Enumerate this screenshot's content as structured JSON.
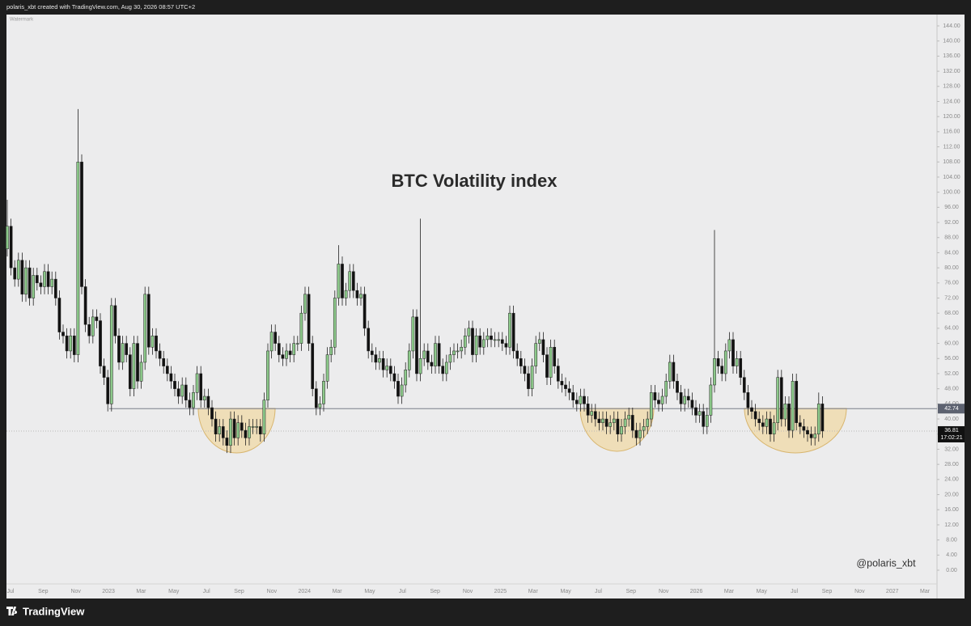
{
  "header": {
    "text": "polaris_xbt created with TradingView.com, Aug 30, 2026 08:57 UTC+2"
  },
  "footer": {
    "brand": "TradingView"
  },
  "chart_data": {
    "type": "candlestick",
    "title": "BTC Volatility index",
    "watermark": "@polaris_xbt",
    "corner_note": "Watermark",
    "up_color": "#8cc98a",
    "down_color": "#111111",
    "open": [
      85,
      91,
      80,
      77,
      82,
      73,
      80,
      72,
      78,
      76,
      75,
      79,
      75,
      77,
      72,
      63,
      62,
      58,
      62,
      57,
      108,
      75,
      65,
      62,
      67,
      66,
      54,
      51,
      44,
      70,
      62,
      55,
      60,
      57,
      48,
      60,
      50,
      55,
      73,
      59,
      62,
      58,
      56,
      54,
      52,
      50,
      48,
      46,
      49,
      45,
      43,
      47,
      52,
      45,
      46,
      43,
      40,
      36,
      38,
      35,
      33,
      40,
      35,
      39,
      37,
      35,
      38,
      38,
      38,
      36,
      45,
      58,
      63,
      60,
      57,
      56,
      58,
      57,
      60,
      60,
      68,
      73,
      60,
      48,
      43,
      44,
      50,
      57,
      59,
      72,
      81,
      72,
      74,
      79,
      74,
      72,
      73,
      64,
      58,
      57,
      55,
      56,
      53,
      54,
      52,
      50,
      46,
      49,
      53,
      58,
      67,
      52,
      56,
      58,
      55,
      54,
      60,
      54,
      52,
      55,
      57,
      58,
      58,
      59,
      62,
      64,
      57,
      62,
      59,
      61,
      62,
      61,
      61,
      61,
      60,
      59,
      68,
      58,
      56,
      54,
      52,
      48,
      54,
      60,
      61,
      57,
      51,
      59,
      54,
      50,
      49,
      48,
      47,
      45,
      44,
      46,
      44,
      41,
      42,
      40,
      39,
      40,
      38,
      39,
      40,
      36,
      38,
      40,
      41,
      37,
      35,
      37,
      38,
      40,
      47,
      45,
      44,
      46,
      50,
      55,
      50,
      47,
      44,
      46,
      45,
      43,
      41,
      42,
      38,
      41,
      49,
      56,
      54,
      52,
      58,
      61,
      54,
      56,
      51,
      47,
      43,
      42,
      40,
      39,
      38,
      40,
      36,
      39,
      51,
      40,
      44,
      37,
      50,
      39,
      38,
      37,
      36,
      35,
      36,
      44
    ],
    "high": [
      98,
      93,
      82,
      84,
      84,
      82,
      82,
      80,
      80,
      78,
      81,
      81,
      79,
      79,
      74,
      65,
      64,
      64,
      64,
      122,
      110,
      77,
      67,
      69,
      69,
      68,
      56,
      53,
      72,
      72,
      64,
      62,
      62,
      59,
      62,
      62,
      57,
      75,
      75,
      64,
      64,
      60,
      58,
      56,
      54,
      52,
      50,
      51,
      51,
      47,
      49,
      54,
      54,
      48,
      48,
      45,
      42,
      40,
      40,
      37,
      42,
      42,
      41,
      41,
      39,
      40,
      40,
      40,
      40,
      47,
      60,
      65,
      65,
      62,
      59,
      60,
      60,
      62,
      62,
      70,
      75,
      75,
      62,
      50,
      46,
      52,
      59,
      61,
      74,
      86,
      83,
      76,
      81,
      81,
      76,
      75,
      75,
      66,
      60,
      59,
      58,
      58,
      56,
      56,
      54,
      52,
      51,
      55,
      60,
      69,
      69,
      93,
      60,
      60,
      57,
      62,
      62,
      56,
      57,
      59,
      60,
      60,
      61,
      64,
      66,
      66,
      64,
      64,
      63,
      64,
      64,
      63,
      63,
      63,
      62,
      70,
      70,
      60,
      58,
      56,
      54,
      56,
      62,
      63,
      63,
      59,
      61,
      61,
      56,
      52,
      51,
      50,
      49,
      47,
      48,
      48,
      46,
      44,
      44,
      42,
      42,
      42,
      41,
      42,
      42,
      40,
      42,
      43,
      43,
      39,
      39,
      40,
      42,
      49,
      49,
      47,
      48,
      52,
      57,
      57,
      52,
      49,
      48,
      48,
      47,
      45,
      44,
      44,
      43,
      51,
      90,
      58,
      56,
      60,
      63,
      63,
      58,
      58,
      53,
      49,
      45,
      44,
      42,
      41,
      42,
      42,
      41,
      53,
      53,
      46,
      46,
      52,
      52,
      41,
      40,
      38,
      38,
      38,
      47,
      46
    ],
    "low": [
      83,
      78,
      75,
      75,
      71,
      71,
      70,
      70,
      74,
      73,
      73,
      73,
      73,
      70,
      61,
      60,
      56,
      56,
      55,
      55,
      73,
      63,
      60,
      60,
      64,
      52,
      49,
      42,
      42,
      60,
      53,
      53,
      55,
      46,
      46,
      48,
      48,
      53,
      57,
      57,
      56,
      54,
      52,
      50,
      48,
      46,
      44,
      44,
      43,
      41,
      41,
      45,
      43,
      43,
      41,
      38,
      34,
      34,
      33,
      31,
      31,
      33,
      33,
      35,
      33,
      33,
      36,
      36,
      34,
      34,
      43,
      56,
      58,
      55,
      54,
      54,
      55,
      55,
      58,
      58,
      66,
      58,
      46,
      41,
      41,
      42,
      48,
      55,
      57,
      70,
      70,
      70,
      72,
      72,
      70,
      70,
      62,
      56,
      55,
      53,
      53,
      51,
      51,
      50,
      48,
      44,
      44,
      47,
      51,
      56,
      50,
      50,
      54,
      53,
      52,
      52,
      52,
      50,
      50,
      53,
      55,
      56,
      56,
      57,
      60,
      55,
      55,
      57,
      57,
      59,
      59,
      59,
      59,
      58,
      57,
      57,
      56,
      54,
      52,
      50,
      46,
      46,
      52,
      58,
      55,
      49,
      49,
      52,
      48,
      47,
      46,
      45,
      43,
      42,
      42,
      42,
      39,
      39,
      38,
      37,
      37,
      36,
      36,
      37,
      34,
      34,
      36,
      38,
      35,
      33,
      33,
      35,
      36,
      38,
      43,
      42,
      42,
      44,
      48,
      48,
      45,
      42,
      42,
      43,
      41,
      39,
      39,
      36,
      36,
      39,
      47,
      52,
      50,
      50,
      56,
      52,
      52,
      49,
      45,
      41,
      40,
      38,
      37,
      36,
      36,
      34,
      34,
      37,
      38,
      38,
      35,
      35,
      37,
      36,
      35,
      34,
      33,
      33,
      34,
      35
    ],
    "close": [
      91,
      80,
      77,
      82,
      73,
      80,
      72,
      78,
      76,
      75,
      79,
      75,
      77,
      72,
      63,
      62,
      58,
      62,
      57,
      108,
      75,
      65,
      62,
      67,
      66,
      54,
      51,
      44,
      70,
      62,
      55,
      60,
      57,
      48,
      60,
      50,
      55,
      73,
      59,
      62,
      58,
      56,
      54,
      52,
      50,
      48,
      46,
      49,
      45,
      43,
      47,
      52,
      45,
      46,
      43,
      40,
      36,
      38,
      35,
      33,
      40,
      35,
      39,
      37,
      35,
      38,
      38,
      38,
      36,
      45,
      58,
      63,
      60,
      57,
      56,
      58,
      57,
      60,
      60,
      68,
      73,
      60,
      48,
      43,
      44,
      50,
      57,
      59,
      72,
      81,
      72,
      74,
      79,
      74,
      72,
      73,
      64,
      58,
      57,
      55,
      56,
      53,
      54,
      52,
      50,
      46,
      49,
      53,
      58,
      67,
      52,
      56,
      58,
      55,
      54,
      60,
      54,
      52,
      55,
      57,
      58,
      58,
      59,
      62,
      64,
      57,
      62,
      59,
      61,
      62,
      61,
      61,
      61,
      60,
      59,
      68,
      58,
      56,
      54,
      52,
      48,
      54,
      60,
      61,
      57,
      51,
      59,
      54,
      50,
      49,
      48,
      47,
      45,
      44,
      46,
      44,
      41,
      42,
      40,
      39,
      40,
      38,
      39,
      40,
      36,
      38,
      40,
      41,
      37,
      35,
      37,
      38,
      40,
      47,
      45,
      44,
      46,
      50,
      55,
      50,
      47,
      44,
      46,
      45,
      43,
      41,
      42,
      38,
      41,
      49,
      56,
      54,
      52,
      58,
      61,
      54,
      56,
      51,
      47,
      43,
      42,
      40,
      39,
      38,
      40,
      36,
      39,
      51,
      40,
      44,
      37,
      50,
      39,
      38,
      37,
      36,
      35,
      36,
      44,
      36.81
    ],
    "hline": 42.74,
    "last_price": 36.81,
    "countdown": "17:02:21",
    "ylim": [
      0,
      144
    ],
    "yticks": [
      {
        "value": 0,
        "label": "0.00"
      },
      {
        "value": 4,
        "label": "4.00"
      },
      {
        "value": 8,
        "label": "8.00"
      },
      {
        "value": 12,
        "label": "12.00"
      },
      {
        "value": 16,
        "label": "16.00"
      },
      {
        "value": 20,
        "label": "20.00"
      },
      {
        "value": 24,
        "label": "24.00"
      },
      {
        "value": 28,
        "label": "28.00"
      },
      {
        "value": 32,
        "label": "32.00"
      },
      {
        "value": 36,
        "label": "36.00"
      },
      {
        "value": 40,
        "label": "40.00"
      },
      {
        "value": 44,
        "label": "44.00"
      },
      {
        "value": 48,
        "label": "48.00"
      },
      {
        "value": 52,
        "label": "52.00"
      },
      {
        "value": 56,
        "label": "56.00"
      },
      {
        "value": 60,
        "label": "60.00"
      },
      {
        "value": 64,
        "label": "64.00"
      },
      {
        "value": 68,
        "label": "68.00"
      },
      {
        "value": 72,
        "label": "72.00"
      },
      {
        "value": 76,
        "label": "76.00"
      },
      {
        "value": 80,
        "label": "80.00"
      },
      {
        "value": 84,
        "label": "84.00"
      },
      {
        "value": 88,
        "label": "88.00"
      },
      {
        "value": 92,
        "label": "92.00"
      },
      {
        "value": 96,
        "label": "96.00"
      },
      {
        "value": 100,
        "label": "100.00"
      },
      {
        "value": 104,
        "label": "104.00"
      },
      {
        "value": 108,
        "label": "108.00"
      },
      {
        "value": 112,
        "label": "112.00"
      },
      {
        "value": 116,
        "label": "116.00"
      },
      {
        "value": 120,
        "label": "120.00"
      },
      {
        "value": 124,
        "label": "124.00"
      },
      {
        "value": 128,
        "label": "128.00"
      },
      {
        "value": 132,
        "label": "132.00"
      },
      {
        "value": 136,
        "label": "136.00"
      },
      {
        "value": 140,
        "label": "140.00"
      },
      {
        "value": 144,
        "label": "144.00"
      }
    ],
    "x_labels": [
      "Jul",
      "Sep",
      "Nov",
      "2023",
      "Mar",
      "May",
      "Jul",
      "Sep",
      "Nov",
      "2024",
      "Mar",
      "May",
      "Jul",
      "Sep",
      "Nov",
      "2025",
      "Mar",
      "May",
      "Jul",
      "Sep",
      "Nov",
      "2026",
      "Mar",
      "May",
      "Jul",
      "Sep",
      "Nov",
      "2027",
      "Mar"
    ]
  }
}
